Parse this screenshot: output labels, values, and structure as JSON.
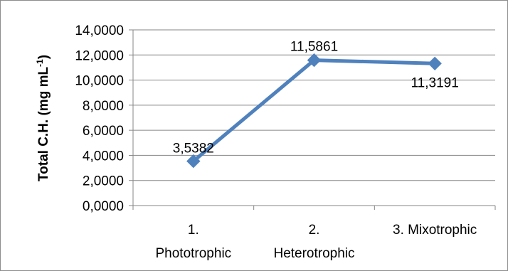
{
  "chart_data": {
    "type": "line",
    "categories": [
      [
        "1.",
        "Phototrophic"
      ],
      [
        "2.",
        "Heterotrophic"
      ],
      [
        "3. Mixotrophic"
      ]
    ],
    "values": [
      3.5382,
      11.5861,
      11.3191
    ],
    "data_labels": [
      "3,5382",
      "11,5861",
      "11,3191"
    ],
    "ylabel": "Total C.H. (mg mL",
    "ylabel_superscript": "-1",
    "ylabel_suffix": ")",
    "ylim": [
      0,
      14
    ],
    "yticks": [
      0,
      2,
      4,
      6,
      8,
      10,
      12,
      14
    ],
    "ytick_labels": [
      "0,0000",
      "2,0000",
      "4,0000",
      "6,0000",
      "8,0000",
      "10,0000",
      "12,0000",
      "14,0000"
    ],
    "grid": true,
    "colors": {
      "series": "#4f81bd",
      "grid": "#868686",
      "axis": "#868686"
    }
  }
}
